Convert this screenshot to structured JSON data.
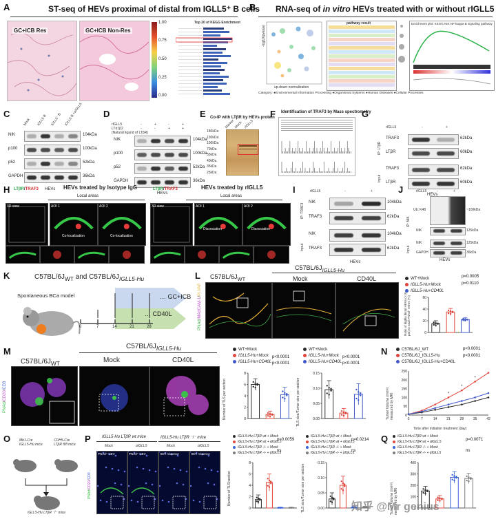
{
  "A": {
    "label": "A",
    "title": "ST-seq of HEVs proximal of distal from IGLL5⁺ B cells",
    "img1": "GC+ICB Res",
    "img2": "GC+ICB Non-Res",
    "scale": [
      "1.00",
      "0.75",
      "0.50",
      "0.25",
      "0.00"
    ],
    "kegg_title": "Top 20 of KEGG Enrichment"
  },
  "B": {
    "label": "B",
    "title_pre": "RNA-seq of ",
    "title_it": "in vitro",
    "title_post": " HEVs treated with or without rIGLL5",
    "axis": "up-down normalization",
    "ylab": "-log10(pvalue)",
    "category": "Category: ●Environmental Information Processing ●Organismal Systems ●Human Diseases ●Cellular Processes",
    "table_head": "pathway result",
    "gsea_title": "Enrichment plot: KEGG NIK NF-kappa B signaling pathway"
  },
  "C": {
    "label": "C",
    "cols": [
      "Mock",
      "IGLL5 B",
      "IGLL5⁻ B",
      "IGLL5 B +αIGLL5"
    ],
    "rows": [
      {
        "name": "NIK",
        "kda": "104kDa"
      },
      {
        "name": "p100",
        "kda": "100kDa"
      },
      {
        "name": "p52",
        "kda": "52kDa"
      },
      {
        "name": "GAPDH",
        "kda": "36kDa"
      }
    ],
    "footer": "HEVs"
  },
  "D": {
    "label": "D",
    "conds": [
      "rIGLL5",
      "LTα1β2",
      "(Natural ligand of LTβR)"
    ],
    "signs": [
      [
        "-",
        "+",
        "-",
        "+"
      ],
      [
        "-",
        "-",
        "+",
        "+"
      ]
    ],
    "rows": [
      {
        "name": "NIK",
        "kda": "104kDa"
      },
      {
        "name": "p100",
        "kda": "100kDa"
      },
      {
        "name": "p52",
        "kda": "52kDa"
      },
      {
        "name": "GAPDH",
        "kda": "36kDa"
      }
    ],
    "footer": "HEVs"
  },
  "E": {
    "label": "E",
    "title": "Co-IP with LTβR by HEVs protein",
    "cols": [
      "Marker",
      "Mock",
      "rIGLL5"
    ],
    "markers": [
      "180kDa",
      "130kDa",
      "100kDa",
      "70kDa",
      "55kDa",
      "40kDa",
      "35kDa",
      "25kDa"
    ]
  },
  "F": {
    "label": "F",
    "title": "Identification of TRAF3 by Mass spectrometry"
  },
  "G": {
    "label": "G",
    "cond": "rIGLL5",
    "signs": [
      "-",
      "+"
    ],
    "rows": [
      {
        "name": "TRAF3",
        "kda": "62kDa"
      },
      {
        "name": "LTβR",
        "kda": "60kDa"
      },
      {
        "name": "TRAF3",
        "kda": "62kDa"
      },
      {
        "name": "LTβR",
        "kda": "60kDa"
      }
    ],
    "ip": "IP: LTβR",
    "input": "Input",
    "footer": "HEVs"
  },
  "H": {
    "label": "H",
    "left_title": "HEVs treated by Isotype IgG",
    "right_title": "HEVs treated by rIGLL5",
    "stain_a": "LTβR",
    "stain_b": "TRAF3",
    "local": "Local areas",
    "l_tags": [
      "3D view",
      "AOI 1",
      "AOI 2"
    ],
    "l_notes": [
      "Co-localization",
      "Co-localization"
    ],
    "r_tags": [
      "3D view",
      "AOI 1",
      "AOI 2"
    ],
    "r_notes": [
      "Dissociation",
      "Dissociation"
    ]
  },
  "I": {
    "label": "I",
    "cond": "rIGLL5",
    "signs": [
      "-",
      "+"
    ],
    "rows": [
      {
        "name": "NIK",
        "kda": "104kDa"
      },
      {
        "name": "TRAF3",
        "kda": "62kDa"
      },
      {
        "name": "NIK",
        "kda": "104kDa"
      },
      {
        "name": "TRAF3",
        "kda": "62kDa"
      }
    ],
    "ip": "IP: TRAF3",
    "input": "Input",
    "footer": "HEVs"
  },
  "J": {
    "label": "J",
    "cond": "rIGLL5",
    "signs": [
      "-",
      "+"
    ],
    "rows": [
      {
        "name": "Ub: K48",
        "kda": "~100kDa"
      },
      {
        "name": "NIK",
        "kda": "125kDa"
      },
      {
        "name": "NIK",
        "kda": "125kDa"
      },
      {
        "name": "GAPDH",
        "kda": "36kDa"
      }
    ],
    "ip": "IP: NIK",
    "input": "Input",
    "footer": "HEVs"
  },
  "K": {
    "label": "K",
    "title1": "C57BL/6J",
    "sub1": "WT",
    "and": " and ",
    "title2": "C57BL/6J",
    "sub2": "IGLL5-Hu",
    "model": "Spontaneous BCa model",
    "ticks": [
      "0",
      "7",
      "14",
      "21",
      "28"
    ],
    "arm1": "GC+ICB",
    "arm2": "CD40L"
  },
  "L": {
    "label": "L",
    "g1": "C57BL/6J",
    "g1sub": "WT",
    "g2": "C57BL/6J",
    "g2sub": "IGLL5-Hu",
    "mock": "Mock",
    "cd40l": "CD40L",
    "stain": "PNAd/MAdCAM-1/PLVAP",
    "legend": [
      "WT+Mock",
      "IGLL5-Hu+Mock",
      "IGLL5-Hu+CD40L"
    ],
    "p1": "p=0.0005",
    "p2": "p=0.0110",
    "ylabel": "Ratio of highly distal HEVs (>10 μm) to total PNAd⁺ HEVs (%)",
    "yticks": [
      "0",
      "20",
      "40",
      "60"
    ]
  },
  "M": {
    "label": "M",
    "g1": "C57BL/6J",
    "g1sub": "WT",
    "g2": "C57BL/6J",
    "g2sub": "IGLL5-Hu",
    "mock": "Mock",
    "cd40l": "CD40L",
    "stain": "PNAd/CD20/CD3",
    "legend": [
      "WT+Mock",
      "IGLL5-Hu+Mock",
      "IGLL5-Hu+CD40L"
    ],
    "p_a": [
      "p<0.0001",
      "p<0.0001"
    ],
    "p_b": [
      "p<0.0001",
      "p<0.0001"
    ],
    "ylab_a": "Number of TLS per section",
    "ylab_b": "TLS size/Tumor size per section",
    "yt_a": [
      "0",
      "2",
      "4",
      "6",
      "8"
    ],
    "yt_b": [
      "0.00",
      "0.05",
      "0.10",
      "0.15"
    ]
  },
  "N": {
    "label": "N",
    "legend": [
      "C57BL/6J_WT",
      "C57BL/6J_IGLL5-Hu",
      "C57BL/6J_IGLL5-Hu+CD40L"
    ],
    "p": [
      "p<0.0001",
      "p<0.0001"
    ],
    "xlabel": "Time after initiation treatment (day)",
    "ylabel": "Tumor Volume (mm³) measured by MRI",
    "xticks": [
      "0",
      "7",
      "14",
      "21",
      "28",
      "35",
      "42"
    ],
    "yticks": [
      "0",
      "50",
      "100",
      "150",
      "200",
      "250"
    ]
  },
  "O": {
    "label": "O",
    "m1a": "Mb1-Cre",
    "m1b": "IGLL5-Hu mice",
    "m2a": "CDH5-Cre",
    "m2b": "LTβR fl/fl mice",
    "res": "IGLL5-Hu LTβR ⁻/⁻ mice"
  },
  "P": {
    "label": "P",
    "g1": "IGLL5-Hu LTβR wt mice",
    "g2": "IGLL5-Hu LTβR ⁻/⁻ mice",
    "cols": [
      "Mock",
      "αIGLL5",
      "Mock",
      "αIGLL5"
    ],
    "tags": [
      "PNAd⁺ HEV",
      "PNAd⁺ HEV",
      "HEV Absence",
      "HEV Absence"
    ],
    "stain": "PNAd/CD20/CD3",
    "legend": [
      "IGLL5-Hu LTβR wt + Mock",
      "IGLL5-Hu LTβR wt + αIGLL5",
      "IGLL5-Hu LTβR -/- + Mock",
      "IGLL5-Hu LTβR -/- + αIGLL5"
    ],
    "p_a": [
      "p=0.0059",
      "ns"
    ],
    "p_b": [
      "p=0.0214",
      "ns"
    ],
    "ylab_a": "Number of TLS/section",
    "ylab_b": "TLS size/Tumor size per section",
    "yt_a": [
      "0",
      "2",
      "4",
      "6",
      "8"
    ],
    "yt_b": [
      "0.00",
      "0.05",
      "0.10",
      "0.15"
    ]
  },
  "Q": {
    "label": "Q",
    "legend": [
      "IGLL5-Hu LTβR wt + Mock",
      "IGLL5-Hu LTβR wt + αIGLL5",
      "IGLL5-Hu LTβR -/- + Mock",
      "IGLL5-Hu LTβR -/- + αIGLL5"
    ],
    "p": [
      "p=0.0071",
      "ns"
    ],
    "ylabel": "Tumor Volume (mm³) measured by MRI",
    "yticks": [
      "0",
      "100",
      "200",
      "300",
      "400"
    ]
  },
  "watermark": "知乎 @Mr genius",
  "colors": {
    "wt": "#2b2b2b",
    "hu_mock": "#e0433a",
    "hu_cd40l": "#3f57c8",
    "ko_mock": "#3a63d8",
    "ko_trt": "#7a7a7a",
    "accent_green": "#8ec45e"
  },
  "chart_data": [
    {
      "type": "bar",
      "id": "L",
      "categories": [
        "WT+Mock",
        "IGLL5-Hu+Mock",
        "IGLL5-Hu+CD40L"
      ],
      "values": [
        15,
        35,
        22
      ],
      "errors": [
        5,
        6,
        3
      ],
      "ylim": [
        0,
        60
      ]
    },
    {
      "type": "bar",
      "id": "M_number",
      "categories": [
        "WT+Mock",
        "IGLL5-Hu+Mock",
        "IGLL5-Hu+CD40L"
      ],
      "values": [
        6,
        0.7,
        4.2
      ],
      "errors": [
        1.0,
        0.6,
        1.3
      ],
      "ylim": [
        0,
        8
      ]
    },
    {
      "type": "bar",
      "id": "M_size",
      "categories": [
        "WT+Mock",
        "IGLL5-Hu+Mock",
        "IGLL5-Hu+CD40L"
      ],
      "values": [
        0.095,
        0.018,
        0.08
      ],
      "errors": [
        0.03,
        0.015,
        0.035
      ],
      "ylim": [
        0,
        0.15
      ]
    },
    {
      "type": "line",
      "id": "N",
      "x": [
        0,
        7,
        14,
        21,
        28,
        35,
        42
      ],
      "series": [
        {
          "name": "C57BL/6J_WT",
          "values": [
            5,
            15,
            30,
            45,
            60,
            80,
            100
          ]
        },
        {
          "name": "C57BL/6J_IGLL5-Hu",
          "values": [
            5,
            25,
            60,
            100,
            140,
            190,
            240
          ]
        },
        {
          "name": "C57BL/6J_IGLL5-Hu+CD40L",
          "values": [
            5,
            20,
            40,
            60,
            80,
            100,
            125
          ]
        }
      ],
      "ylim": [
        0,
        250
      ]
    },
    {
      "type": "bar",
      "id": "P_number",
      "categories": [
        "LTbR wt + Mock",
        "LTbR wt + aIGLL5",
        "LTbR -/- + Mock",
        "LTbR -/- + aIGLL5"
      ],
      "values": [
        1.5,
        4.5,
        0.05,
        0.05
      ],
      "errors": [
        0.8,
        1.5,
        0.05,
        0.05
      ],
      "ylim": [
        0,
        8
      ]
    },
    {
      "type": "bar",
      "id": "P_size",
      "categories": [
        "LTbR wt + Mock",
        "LTbR wt + aIGLL5",
        "LTbR -/- + Mock",
        "LTbR -/- + aIGLL5"
      ],
      "values": [
        0.03,
        0.075,
        0.002,
        0.002
      ],
      "errors": [
        0.02,
        0.03,
        0.002,
        0.002
      ],
      "ylim": [
        0,
        0.15
      ]
    },
    {
      "type": "bar",
      "id": "Q",
      "categories": [
        "LTbR wt + Mock",
        "LTbR wt + aIGLL5",
        "LTbR -/- + Mock",
        "LTbR -/- + aIGLL5"
      ],
      "values": [
        150,
        80,
        270,
        260
      ],
      "errors": [
        40,
        30,
        50,
        45
      ],
      "ylim": [
        0,
        400
      ]
    }
  ]
}
